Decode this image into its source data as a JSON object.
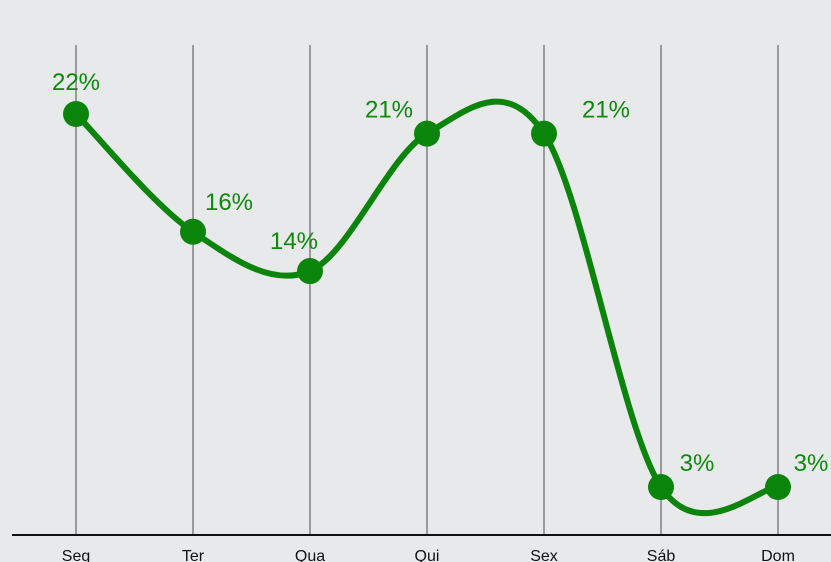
{
  "chart_data": {
    "type": "line",
    "categories": [
      "Seg",
      "Ter",
      "Qua",
      "Qui",
      "Sex",
      "Sáb",
      "Dom"
    ],
    "values": [
      22,
      16,
      14,
      21,
      21,
      3,
      3
    ],
    "value_labels": [
      "22%",
      "16%",
      "14%",
      "21%",
      "21%",
      "3%",
      "3%"
    ],
    "color": "#0b840b",
    "grid": true
  }
}
